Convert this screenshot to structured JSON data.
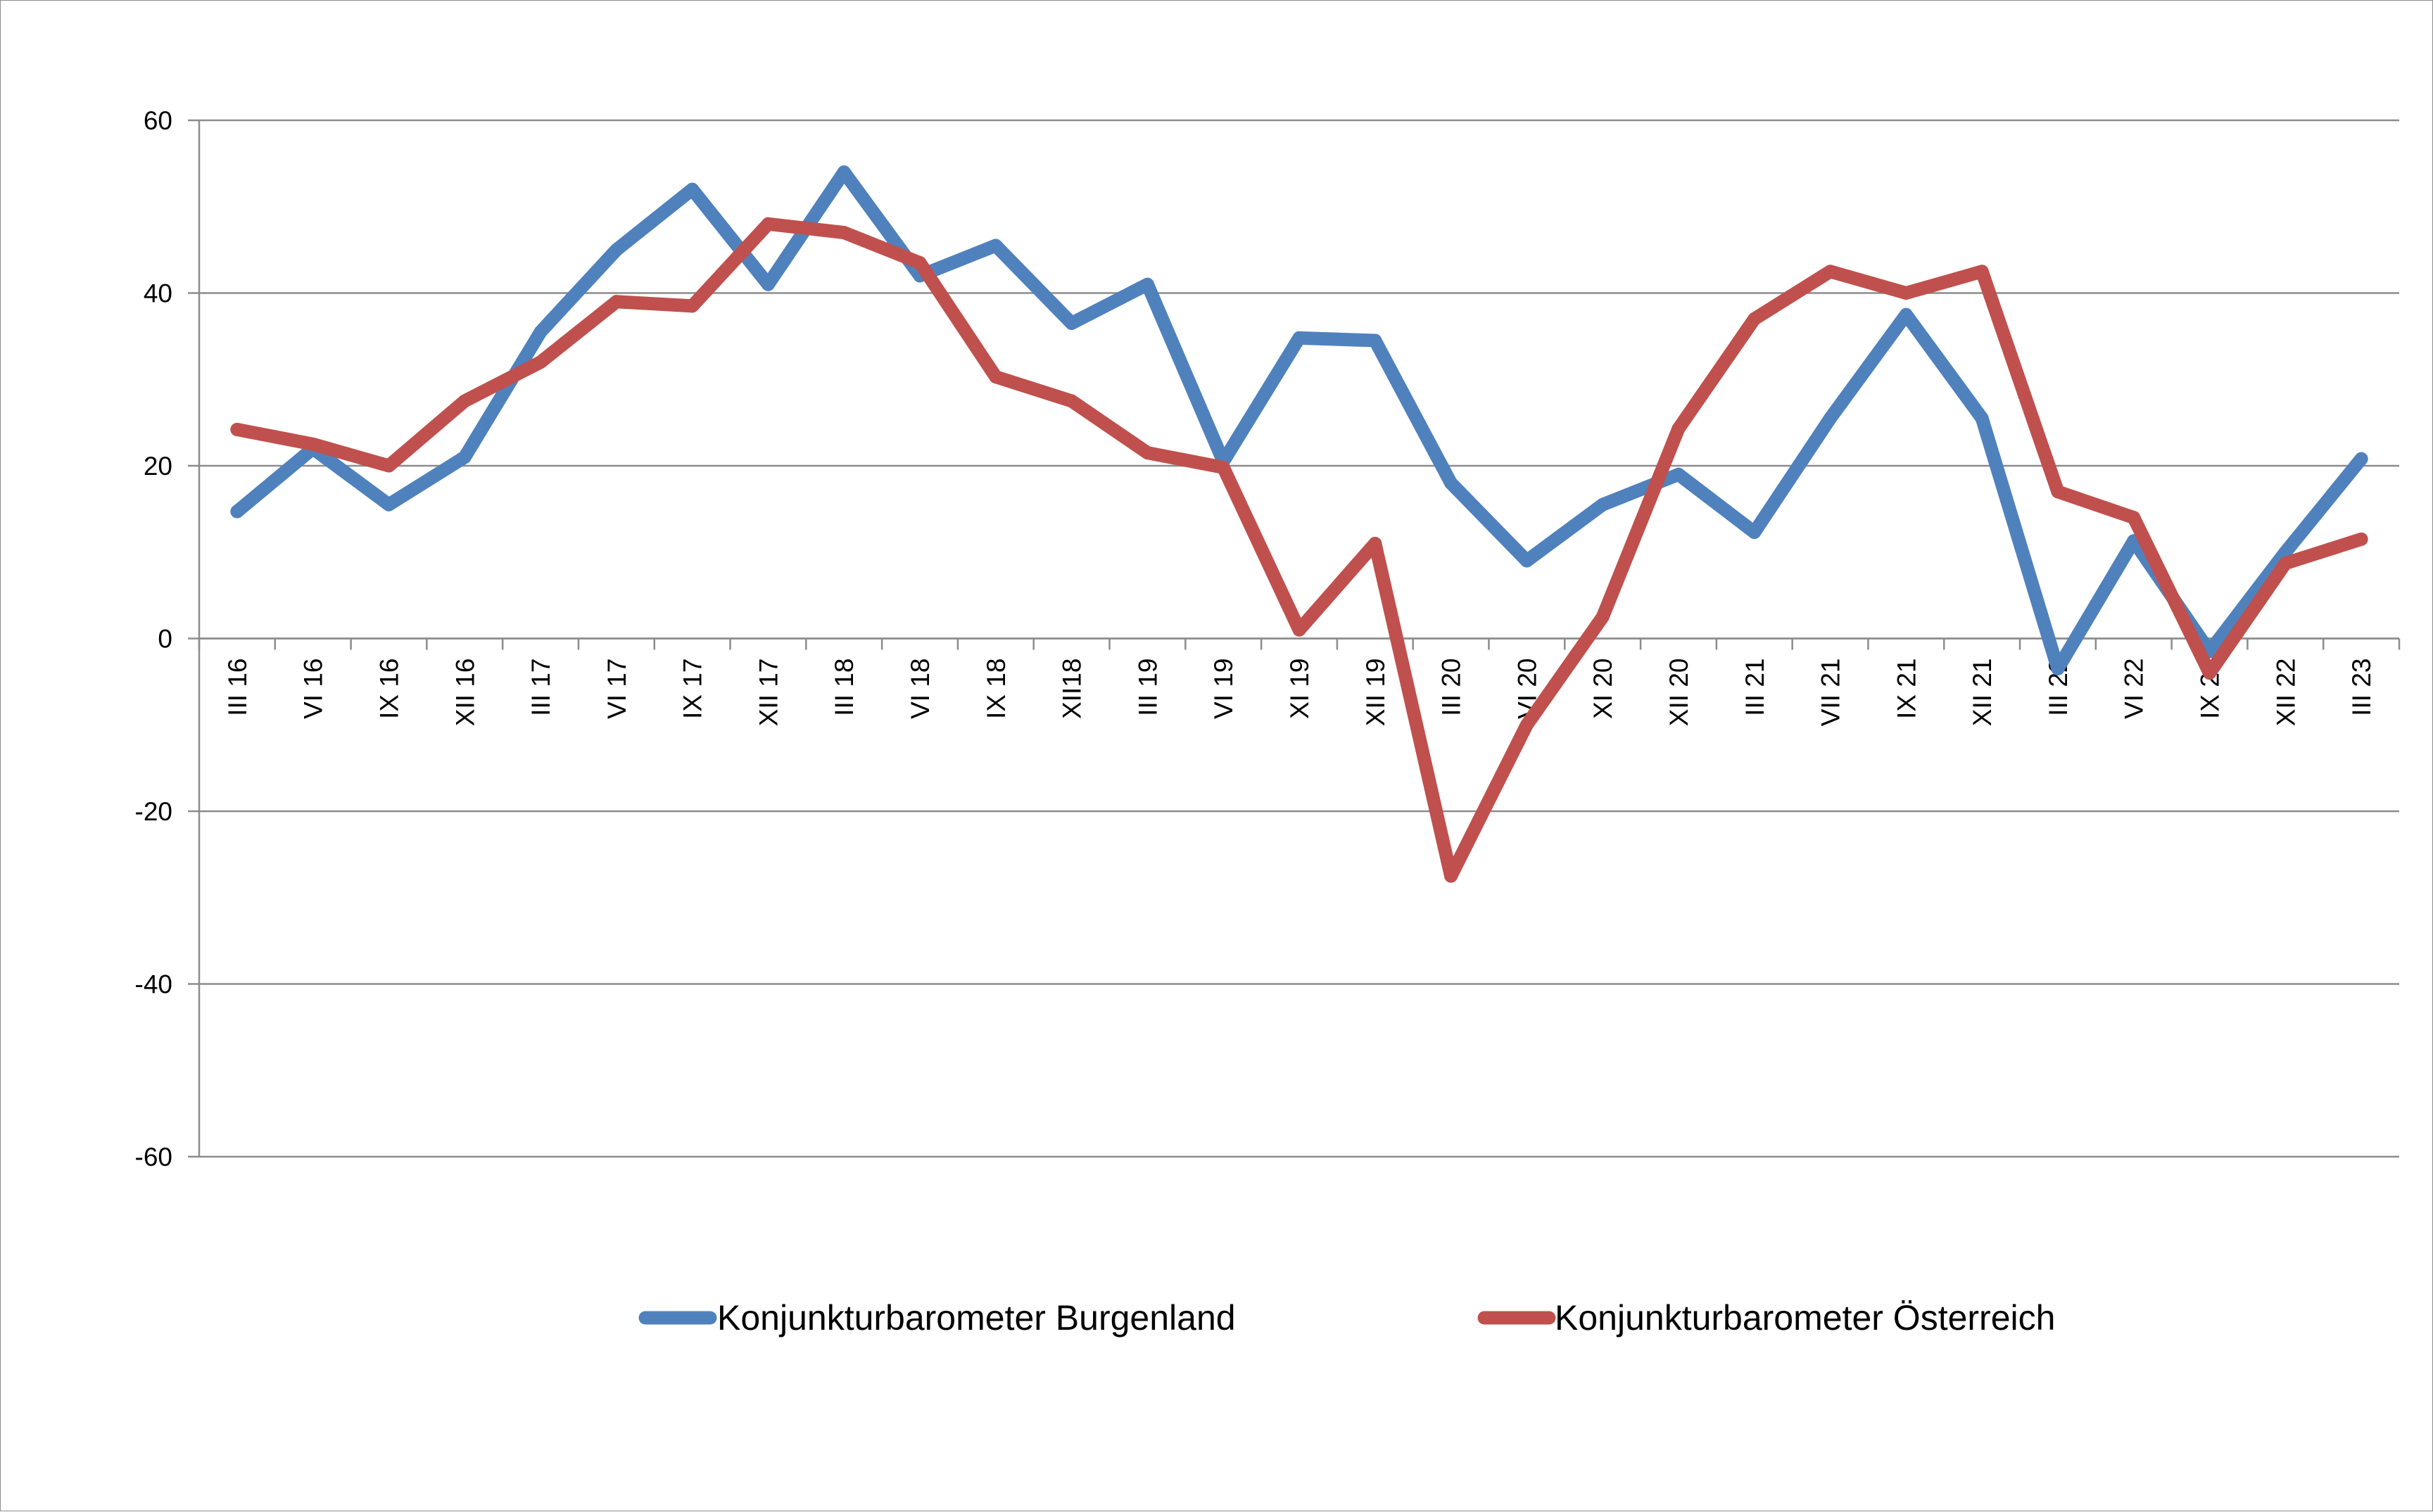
{
  "chart_data": {
    "type": "line",
    "title": "",
    "xlabel": "",
    "ylabel": "",
    "ylim": [
      -60,
      60
    ],
    "yticks": [
      "60",
      "40",
      "20",
      "0",
      "-20",
      "-40",
      "-60"
    ],
    "grid": "horizontal",
    "legend_position": "bottom",
    "categories": [
      "III 16",
      "VI 16",
      "IX 16",
      "XII 16",
      "III 17",
      "VI 17",
      "IX 17",
      "XII 17",
      "III 18",
      "VI 18",
      "IX 18",
      "XII18",
      "III 19",
      "VI 19",
      "XI 19",
      "XII 19",
      "III 20",
      "VI 20",
      "XI 20",
      "XII 20",
      "III 21",
      "VII 21",
      "IX 21",
      "XII 21",
      "III 22",
      "VI 22",
      "IX 22",
      "XII 22",
      "III 23"
    ],
    "series": [
      {
        "name": "Konjunkturbarometer Burgenland",
        "color": "#4f81bd",
        "values": [
          14.7,
          22,
          15.5,
          21,
          35.5,
          45,
          52,
          41,
          54,
          42,
          45.5,
          36.5,
          41,
          20.5,
          34.8,
          34.5,
          18,
          9,
          15.5,
          19,
          12.3,
          25.5,
          37.5,
          25.5,
          -3.5,
          11.3,
          -1.5,
          10,
          20.8
        ]
      },
      {
        "name": "Konjunkturbarometer Österreich",
        "color": "#c0504d",
        "values": [
          24.2,
          22.5,
          20,
          27.5,
          32,
          39,
          38.5,
          48,
          47,
          43.5,
          30.3,
          27.5,
          21.5,
          19.8,
          1,
          11,
          -27.5,
          -10,
          2.5,
          24.3,
          37,
          42.5,
          40,
          42.5,
          17,
          14,
          -4,
          8.7,
          11.5
        ]
      }
    ]
  }
}
